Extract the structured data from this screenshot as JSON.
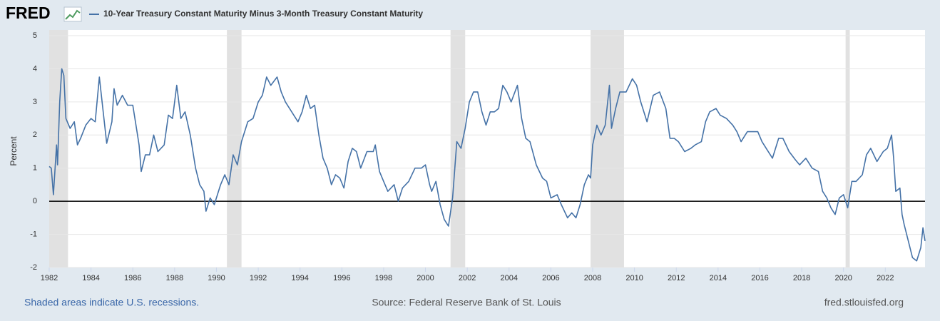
{
  "logo": "FRED",
  "chart_data": {
    "type": "line",
    "ylabel": "Percent",
    "footer_note": "Shaded areas indicate U.S. recessions.",
    "source": "Source: Federal Reserve Bank of St. Louis",
    "site": "fred.stlouisfed.org",
    "xlim": [
      1982,
      2023.9
    ],
    "xticks": [
      1982,
      1984,
      1986,
      1988,
      1990,
      1992,
      1994,
      1996,
      1998,
      2000,
      2002,
      2004,
      2006,
      2008,
      2010,
      2012,
      2014,
      2016,
      2018,
      2020,
      2022
    ],
    "ylim": [
      -2,
      5
    ],
    "yticks": [
      -2,
      -1,
      0,
      1,
      2,
      3,
      4,
      5
    ],
    "grid": true,
    "recessions": [
      [
        1982.0,
        1982.9
      ],
      [
        1990.5,
        1991.2
      ],
      [
        2001.2,
        2001.9
      ],
      [
        2007.9,
        2009.5
      ],
      [
        2020.1,
        2020.3
      ]
    ],
    "x": [
      1982.0,
      1982.1,
      1982.2,
      1982.35,
      1982.4,
      1982.5,
      1982.6,
      1982.7,
      1982.8,
      1983.0,
      1983.2,
      1983.35,
      1983.5,
      1983.75,
      1984.0,
      1984.2,
      1984.4,
      1984.6,
      1984.75,
      1985.0,
      1985.1,
      1985.25,
      1985.5,
      1985.75,
      1986.0,
      1986.2,
      1986.3,
      1986.4,
      1986.6,
      1986.8,
      1987.0,
      1987.2,
      1987.5,
      1987.7,
      1987.9,
      1988.1,
      1988.3,
      1988.5,
      1988.75,
      1989.0,
      1989.2,
      1989.4,
      1989.5,
      1989.7,
      1989.9,
      1990.2,
      1990.4,
      1990.6,
      1990.8,
      1991.0,
      1991.2,
      1991.5,
      1991.75,
      1992.0,
      1992.2,
      1992.4,
      1992.6,
      1992.9,
      1993.1,
      1993.3,
      1993.6,
      1993.9,
      1994.1,
      1994.3,
      1994.5,
      1994.7,
      1994.9,
      1995.1,
      1995.3,
      1995.5,
      1995.7,
      1995.9,
      1996.1,
      1996.3,
      1996.5,
      1996.7,
      1996.9,
      1997.2,
      1997.5,
      1997.6,
      1997.8,
      1998.0,
      1998.2,
      1998.5,
      1998.7,
      1998.9,
      1999.2,
      1999.5,
      1999.8,
      2000.0,
      2000.2,
      2000.3,
      2000.5,
      2000.7,
      2000.9,
      2001.1,
      2001.3,
      2001.5,
      2001.7,
      2001.9,
      2002.1,
      2002.3,
      2002.5,
      2002.7,
      2002.9,
      2003.1,
      2003.3,
      2003.5,
      2003.7,
      2003.9,
      2004.1,
      2004.4,
      2004.6,
      2004.8,
      2005.0,
      2005.3,
      2005.6,
      2005.8,
      2006.0,
      2006.3,
      2006.5,
      2006.8,
      2007.0,
      2007.2,
      2007.4,
      2007.6,
      2007.8,
      2007.9,
      2008.0,
      2008.2,
      2008.4,
      2008.6,
      2008.8,
      2008.9,
      2009.1,
      2009.3,
      2009.6,
      2009.9,
      2010.1,
      2010.3,
      2010.6,
      2010.9,
      2011.2,
      2011.5,
      2011.7,
      2011.9,
      2012.1,
      2012.4,
      2012.7,
      2012.9,
      2013.2,
      2013.4,
      2013.6,
      2013.9,
      2014.1,
      2014.4,
      2014.7,
      2014.9,
      2015.1,
      2015.4,
      2015.6,
      2015.9,
      2016.1,
      2016.3,
      2016.6,
      2016.9,
      2017.1,
      2017.4,
      2017.7,
      2017.9,
      2018.2,
      2018.5,
      2018.8,
      2019.0,
      2019.2,
      2019.4,
      2019.6,
      2019.8,
      2020.0,
      2020.2,
      2020.4,
      2020.6,
      2020.9,
      2021.1,
      2021.3,
      2021.6,
      2021.9,
      2022.1,
      2022.3,
      2022.4,
      2022.5,
      2022.7,
      2022.8,
      2022.9,
      2023.1,
      2023.3,
      2023.5,
      2023.7,
      2023.8,
      2023.9
    ],
    "series": [
      {
        "name": "10-Year Treasury Constant Maturity Minus 3-Month Treasury Constant Maturity",
        "color": "#4572a7",
        "values": [
          1.05,
          1.0,
          0.2,
          1.7,
          1.1,
          3.0,
          4.0,
          3.8,
          2.5,
          2.2,
          2.4,
          1.7,
          1.9,
          2.3,
          2.5,
          2.4,
          3.75,
          2.6,
          1.75,
          2.4,
          3.4,
          2.9,
          3.2,
          2.9,
          2.9,
          2.1,
          1.7,
          0.9,
          1.4,
          1.4,
          2.0,
          1.5,
          1.7,
          2.6,
          2.5,
          3.5,
          2.5,
          2.7,
          2.0,
          1.0,
          0.5,
          0.3,
          -0.3,
          0.1,
          -0.1,
          0.5,
          0.8,
          0.5,
          1.4,
          1.1,
          1.8,
          2.4,
          2.5,
          3.0,
          3.2,
          3.75,
          3.5,
          3.75,
          3.3,
          3.0,
          2.7,
          2.4,
          2.7,
          3.2,
          2.8,
          2.9,
          2.0,
          1.3,
          1.0,
          0.5,
          0.8,
          0.7,
          0.4,
          1.2,
          1.6,
          1.5,
          1.0,
          1.5,
          1.5,
          1.7,
          0.9,
          0.6,
          0.3,
          0.5,
          0.0,
          0.4,
          0.6,
          1.0,
          1.0,
          1.1,
          0.5,
          0.3,
          0.6,
          -0.1,
          -0.55,
          -0.75,
          0.1,
          1.8,
          1.6,
          2.2,
          3.0,
          3.3,
          3.3,
          2.7,
          2.3,
          2.7,
          2.7,
          2.8,
          3.5,
          3.3,
          3.0,
          3.5,
          2.5,
          1.9,
          1.8,
          1.1,
          0.7,
          0.6,
          0.1,
          0.2,
          -0.1,
          -0.5,
          -0.35,
          -0.5,
          -0.1,
          0.5,
          0.8,
          0.7,
          1.7,
          2.3,
          2.0,
          2.3,
          3.5,
          2.2,
          2.8,
          3.3,
          3.3,
          3.7,
          3.5,
          3.0,
          2.4,
          3.2,
          3.3,
          2.8,
          1.9,
          1.9,
          1.8,
          1.5,
          1.6,
          1.7,
          1.8,
          2.4,
          2.7,
          2.8,
          2.6,
          2.5,
          2.3,
          2.1,
          1.8,
          2.1,
          2.1,
          2.1,
          1.8,
          1.6,
          1.3,
          1.9,
          1.9,
          1.5,
          1.25,
          1.1,
          1.3,
          1.0,
          0.9,
          0.3,
          0.1,
          -0.2,
          -0.4,
          0.1,
          0.2,
          -0.2,
          0.6,
          0.6,
          0.8,
          1.4,
          1.6,
          1.2,
          1.5,
          1.6,
          2.0,
          1.3,
          0.3,
          0.4,
          -0.4,
          -0.7,
          -1.2,
          -1.7,
          -1.8,
          -1.4,
          -0.8,
          -1.2
        ]
      }
    ]
  }
}
